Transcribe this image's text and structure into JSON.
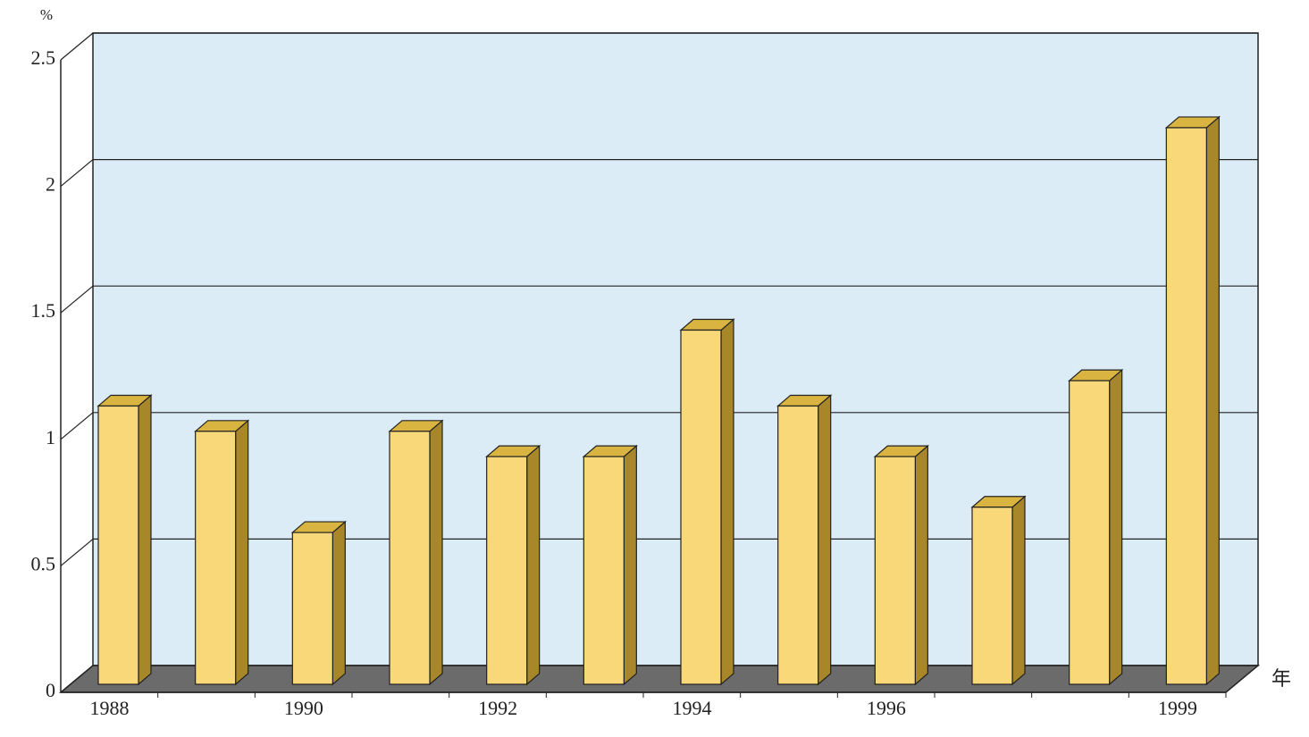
{
  "chart_data": {
    "type": "bar3d",
    "y_unit_label": "%",
    "x_unit_label": "年",
    "categories": [
      "1988",
      null,
      "1990",
      null,
      "1992",
      null,
      "1994",
      null,
      "1996",
      null,
      null,
      "1999"
    ],
    "values": [
      1.1,
      1.0,
      0.6,
      1.0,
      0.9,
      0.9,
      1.4,
      1.1,
      0.9,
      0.7,
      1.2,
      2.2
    ],
    "color": "#f8d878",
    "ylim": [
      0,
      2.5
    ],
    "yticks": [
      0,
      0.5,
      1,
      1.5,
      2,
      2.5
    ],
    "grid": true
  }
}
